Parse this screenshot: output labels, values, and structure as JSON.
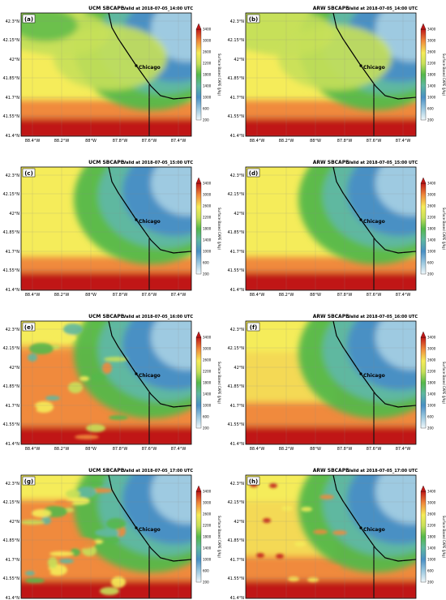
{
  "figure": {
    "panels": [
      {
        "letter": "(a)",
        "model": "UCM SBCAPE",
        "valid": "Valid at 2018-07-05_14:00 UTC",
        "time_index": 0
      },
      {
        "letter": "(b)",
        "model": "ARW SBCAPE",
        "valid": "Valid at 2018-07-05_14:00 UTC",
        "time_index": 0
      },
      {
        "letter": "(c)",
        "model": "UCM SBCAPE",
        "valid": "Valid at 2018-07-05_15:00 UTC",
        "time_index": 1
      },
      {
        "letter": "(d)",
        "model": "ARW SBCAPE",
        "valid": "Valid at 2018-07-05_15:00 UTC",
        "time_index": 1
      },
      {
        "letter": "(e)",
        "model": "UCM SBCAPE",
        "valid": "Valid at 2018-07-05_16:00 UTC",
        "time_index": 2
      },
      {
        "letter": "(f)",
        "model": "ARW SBCAPE",
        "valid": "Valid at 2018-07-05_16:00 UTC",
        "time_index": 2
      },
      {
        "letter": "(g)",
        "model": "UCM SBCAPE",
        "valid": "Valid at 2018-07-05_17:00 UTC",
        "time_index": 3
      },
      {
        "letter": "(h)",
        "model": "ARW SBCAPE",
        "valid": "Valid at 2018-07-05_17:00 UTC",
        "time_index": 3
      }
    ],
    "lat_ticks": [
      "42.3°N",
      "42.15°N",
      "42°N",
      "41.85°N",
      "41.7°N",
      "41.55°N",
      "41.4°N"
    ],
    "lon_ticks": [
      "88.4°W",
      "88.2°W",
      "88°W",
      "87.8°W",
      "87.6°W",
      "87.4°W"
    ],
    "city": "Chicago",
    "colorbar_label": "Surface Based CAPE (J/kg)",
    "colorbar_ticks": [
      "200",
      "600",
      "1000",
      "1400",
      "1800",
      "2200",
      "2600",
      "3000",
      "3400"
    ],
    "colors": {
      "c200": "#f0f8fb",
      "c600": "#9ecae1",
      "c1000": "#4a90c4",
      "c1400": "#5fb8a0",
      "c1800": "#55b84a",
      "c2200": "#c6e05a",
      "c2600": "#f5ec5a",
      "c3000": "#f08a3c",
      "c3400": "#c01818"
    }
  }
}
